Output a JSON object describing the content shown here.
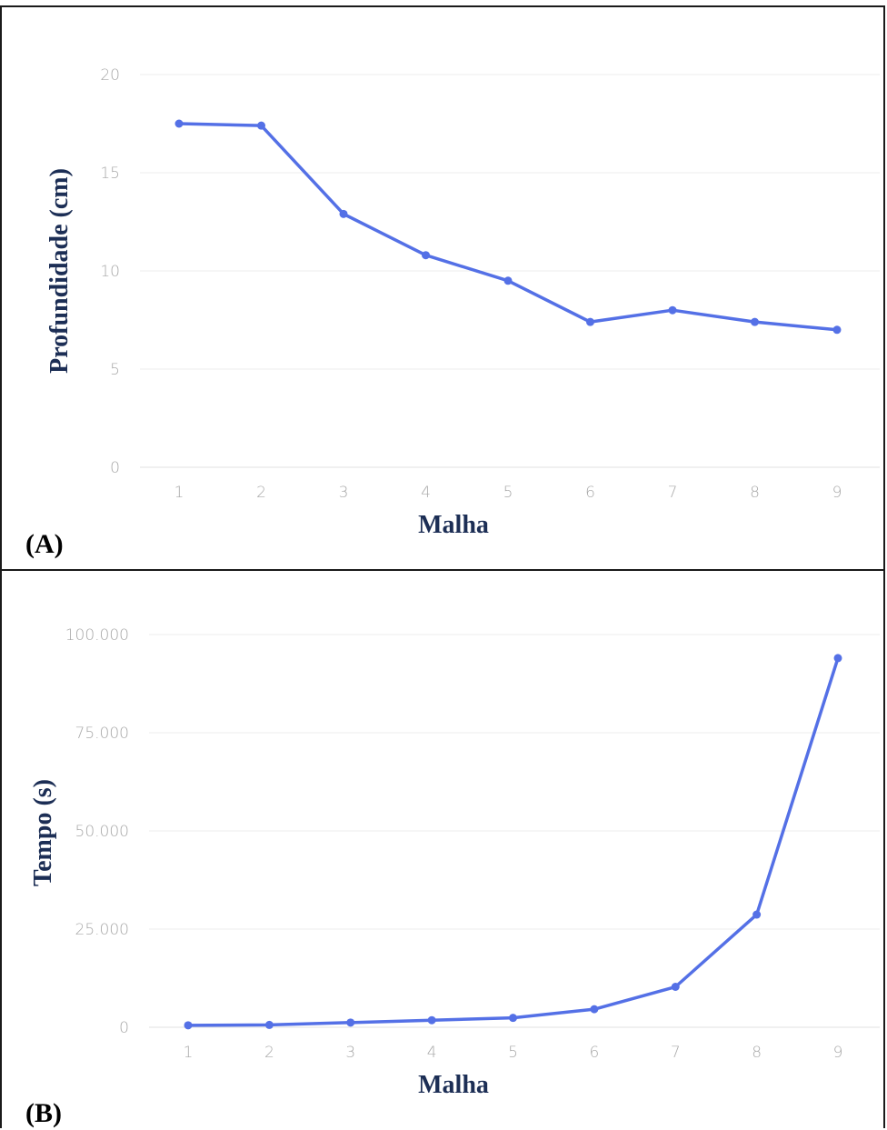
{
  "panels": [
    {
      "label": "(A)",
      "xlabel": "Malha",
      "ylabel": "Profundidade (cm)"
    },
    {
      "label": "(B)",
      "xlabel": "Malha",
      "ylabel": "Tempo (s)"
    }
  ],
  "chart_data": [
    {
      "type": "line",
      "title": "",
      "xlabel": "Malha",
      "ylabel": "Profundidade (cm)",
      "x": [
        "1",
        "2",
        "3",
        "4",
        "5",
        "6",
        "7",
        "8",
        "9"
      ],
      "series": [
        {
          "values": [
            17.5,
            17.4,
            12.9,
            10.8,
            9.5,
            7.4,
            8.0,
            7.4,
            7.0
          ]
        }
      ],
      "ylim": [
        0,
        20
      ],
      "yticks": [
        "0",
        "5",
        "10",
        "15",
        "20"
      ],
      "grid": true,
      "line_color": "#5470e6"
    },
    {
      "type": "line",
      "title": "",
      "xlabel": "Malha",
      "ylabel": "Tempo (s)",
      "x": [
        "1",
        "2",
        "3",
        "4",
        "5",
        "6",
        "7",
        "8",
        "9"
      ],
      "series": [
        {
          "values": [
            500,
            600,
            1200,
            1800,
            2400,
            4600,
            10300,
            28700,
            94000
          ]
        }
      ],
      "ylim": [
        0,
        100000
      ],
      "yticks": [
        "0",
        "25.000",
        "50.000",
        "75.000",
        "100.000"
      ],
      "grid": true,
      "line_color": "#5470e6"
    }
  ]
}
